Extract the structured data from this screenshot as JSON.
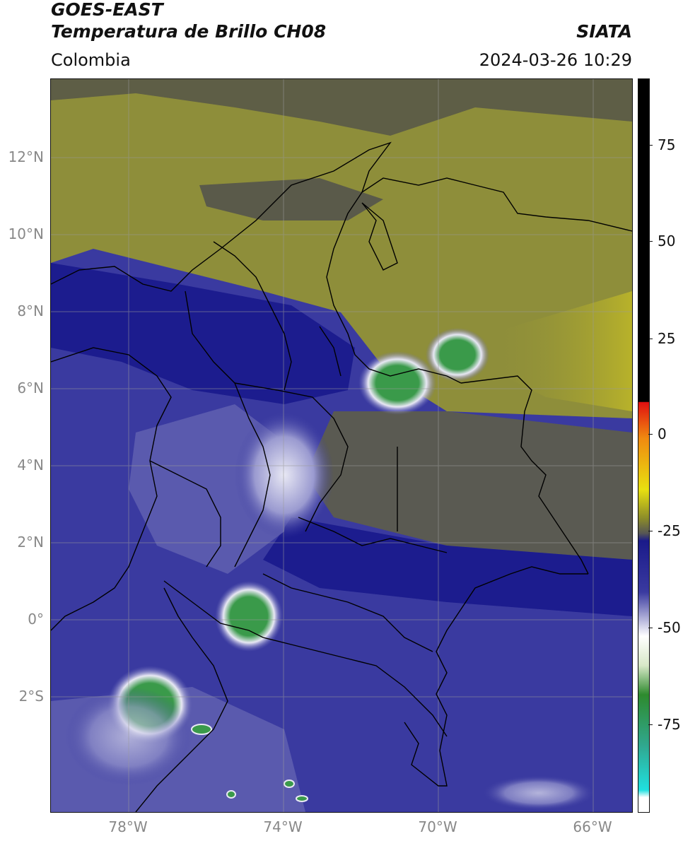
{
  "header": {
    "title_line1": "GOES-EAST",
    "title_line2": "Temperatura de Brillo CH08",
    "region": "Colombia",
    "brand": "SIATA",
    "timestamp": "2024-03-26 10:29"
  },
  "axes": {
    "lat_labels": [
      "12°N",
      "10°N",
      "8°N",
      "6°N",
      "4°N",
      "2°N",
      "0°",
      "2°S"
    ],
    "lon_labels": [
      "78°W",
      "74°W",
      "70°W",
      "66°W"
    ]
  },
  "colorbar": {
    "ticks": [
      "75",
      "50",
      "25",
      "0",
      "-25",
      "-50",
      "-75"
    ],
    "colors": {
      "black_top": "#000000",
      "red": "#e01010",
      "orange": "#f08a10",
      "yellow": "#e8e010",
      "olive": "#8a8a2a",
      "gray": "#555555",
      "navy": "#1a1a8a",
      "blue": "#3a3aa0",
      "white": "#ffffff",
      "green": "#2e8a2e",
      "teal": "#30a890",
      "cyan": "#20e0e0"
    }
  },
  "map": {
    "colors": {
      "olive_warm": "#8e8e3a",
      "olive_light": "#a2a23c",
      "yellow_warm": "#b8b22a",
      "gray_dry": "#585858",
      "navy": "#1c1c8e",
      "blue": "#3a3aa0",
      "blue_light": "#6a6ab8",
      "cloud_white": "#e8e8f4",
      "cloud_green": "#3a9a4a",
      "grid": "#9a9a9a",
      "border": "#000000"
    }
  }
}
